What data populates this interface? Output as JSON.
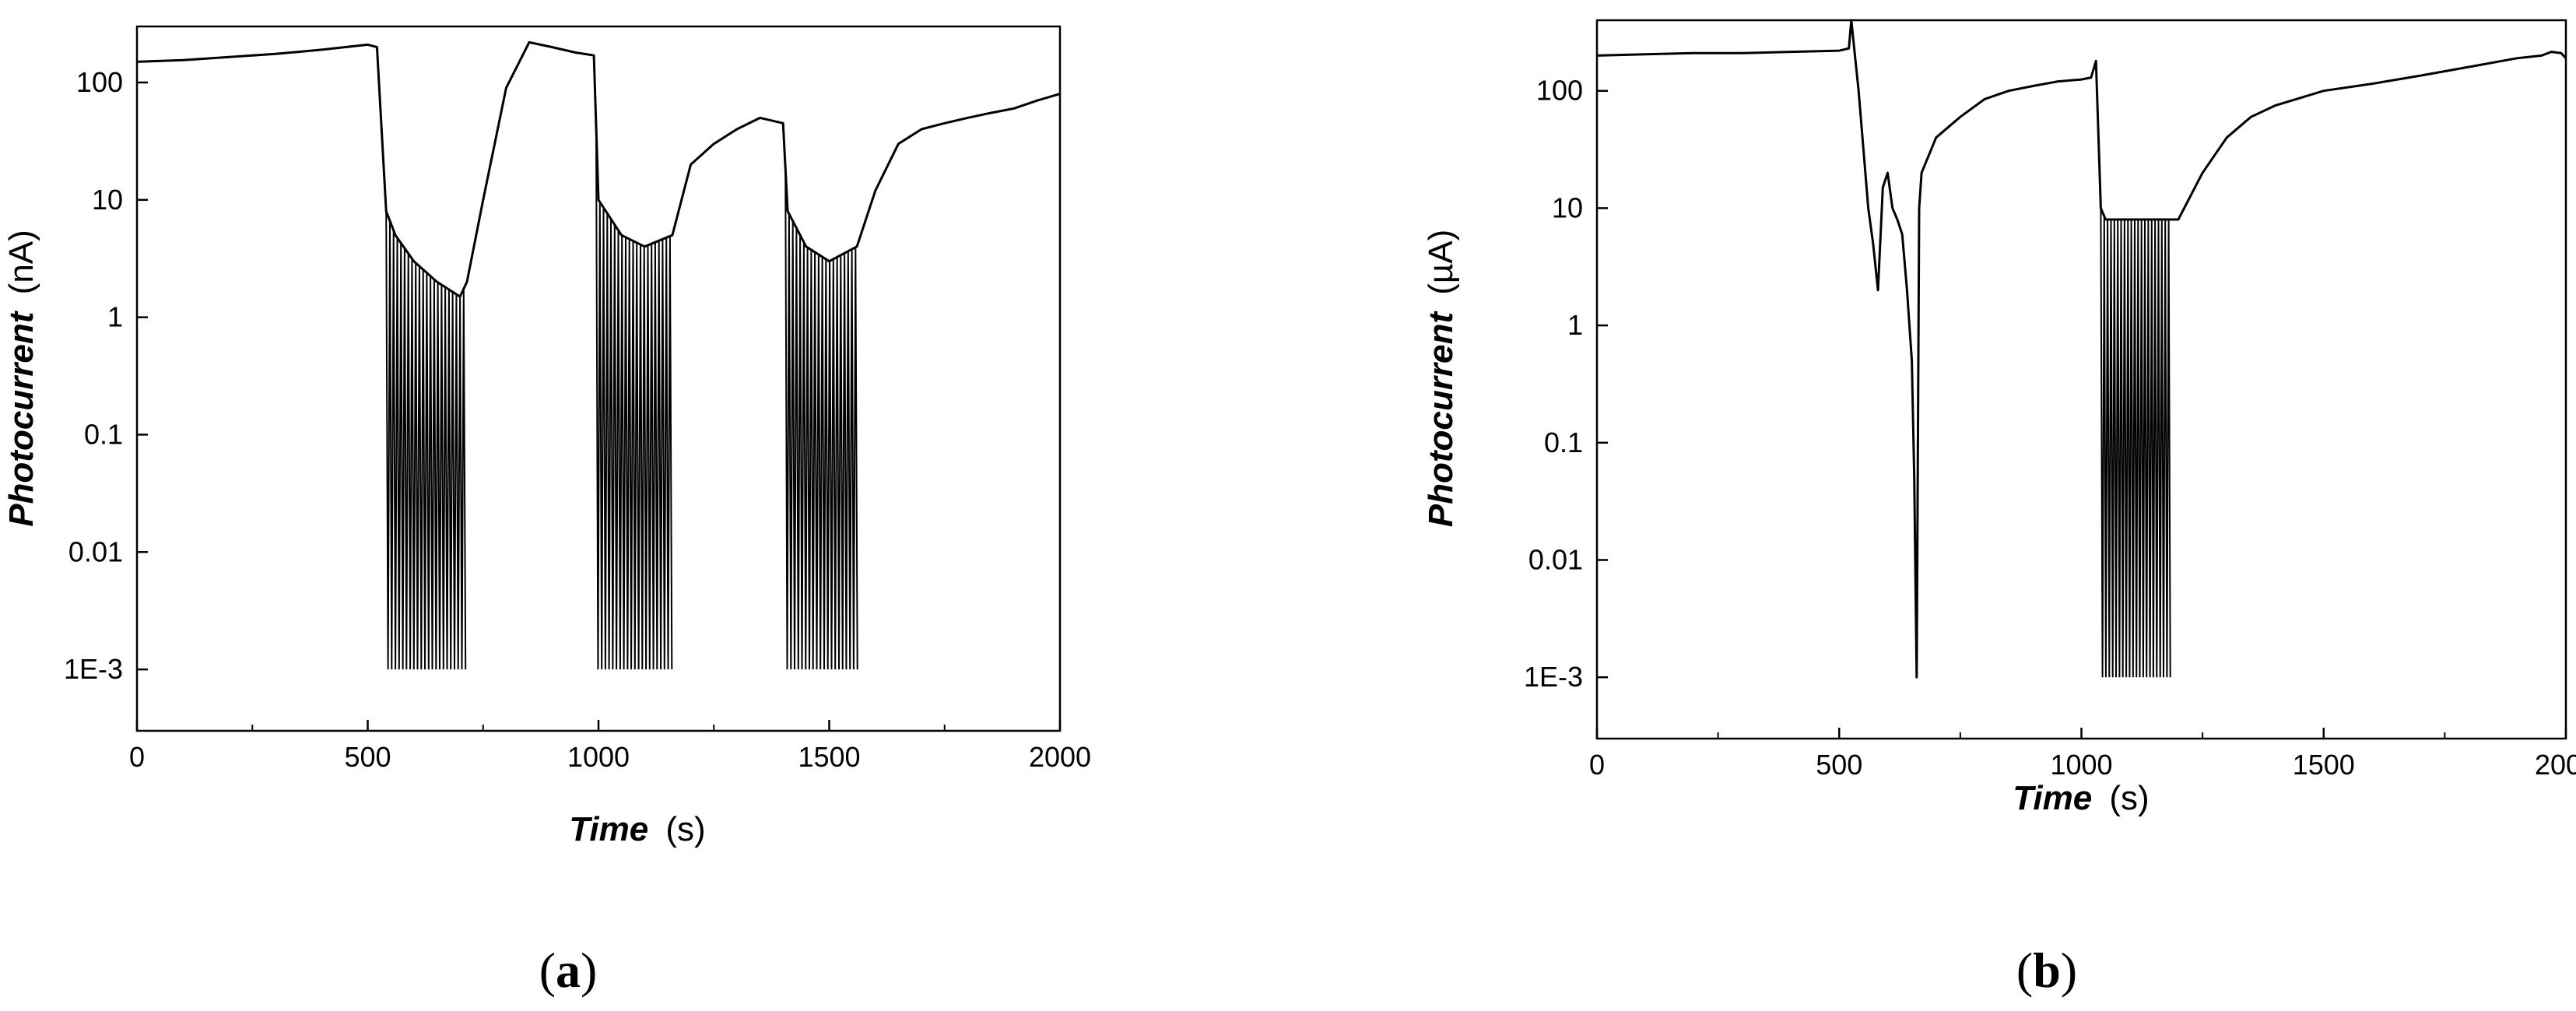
{
  "panels": [
    {
      "label_open": "(",
      "label_letter": "a",
      "label_close": ")"
    },
    {
      "label_open": "(",
      "label_letter": "b",
      "label_close": ")"
    }
  ],
  "chart_data": [
    {
      "type": "line",
      "xlabel_main": "Time",
      "xlabel_unit": "(s)",
      "ylabel_main": "Photocurrent",
      "ylabel_unit": "(nA)",
      "y_scale": "log",
      "xlim": [
        0,
        2000
      ],
      "ylim": [
        0.0003,
        300
      ],
      "x_ticks": [
        0,
        500,
        1000,
        1500,
        2000
      ],
      "x_tick_labels": [
        "0",
        "500",
        "1000",
        "1500",
        "2000"
      ],
      "y_ticks": [
        100,
        10,
        1,
        0.1,
        0.01,
        0.001
      ],
      "y_tick_labels": [
        "100",
        "10",
        "1",
        "0.1",
        "0.01",
        "1E-3"
      ],
      "grid": false,
      "series": [
        {
          "x": [
            0,
            100,
            200,
            300,
            400,
            500,
            520,
            540,
            560,
            600,
            650,
            700,
            715,
            750,
            800,
            850,
            900,
            950,
            990,
            1000,
            1050,
            1100,
            1160,
            1200,
            1250,
            1300,
            1350,
            1400,
            1410,
            1450,
            1500,
            1560,
            1600,
            1650,
            1700,
            1750,
            1800,
            1850,
            1900,
            1950,
            2000
          ],
          "y": [
            150,
            155,
            165,
            175,
            190,
            210,
            200,
            8,
            5,
            3,
            2,
            1.5,
            2,
            10,
            90,
            220,
            200,
            180,
            170,
            10,
            5,
            4,
            5,
            20,
            30,
            40,
            50,
            45,
            8,
            4,
            3,
            4,
            12,
            30,
            40,
            45,
            50,
            55,
            60,
            70,
            80
          ],
          "bursts": [
            {
              "x_start": 540,
              "x_end": 715,
              "x_step": 8,
              "y_low": 0.001
            },
            {
              "x_start": 995,
              "x_end": 1160,
              "x_step": 8,
              "y_low": 0.001
            },
            {
              "x_start": 1405,
              "x_end": 1560,
              "x_step": 8,
              "y_low": 0.001
            }
          ]
        }
      ]
    },
    {
      "type": "line",
      "xlabel_main": "Time",
      "xlabel_unit": "(s)",
      "ylabel_main": "Photocurrent",
      "ylabel_unit": "(µA)",
      "y_scale": "log",
      "xlim": [
        0,
        2000
      ],
      "ylim": [
        0.0003,
        400
      ],
      "x_ticks": [
        0,
        500,
        1000,
        1500,
        2000
      ],
      "x_tick_labels": [
        "0",
        "500",
        "1000",
        "1500",
        "2000"
      ],
      "y_ticks": [
        100,
        10,
        1,
        0.1,
        0.01,
        0.001
      ],
      "y_tick_labels": [
        "100",
        "10",
        "1",
        "0.1",
        "0.01",
        "1E-3"
      ],
      "grid": false,
      "series": [
        {
          "x": [
            0,
            100,
            200,
            300,
            400,
            500,
            520,
            525,
            540,
            560,
            570,
            580,
            590,
            600,
            610,
            620,
            630,
            640,
            650,
            655,
            660,
            665,
            670,
            700,
            750,
            800,
            850,
            900,
            950,
            1000,
            1020,
            1030,
            1040,
            1050,
            1100,
            1150,
            1180,
            1200,
            1250,
            1300,
            1350,
            1400,
            1500,
            1600,
            1700,
            1800,
            1900,
            1950,
            1970,
            1990,
            2000
          ],
          "y": [
            200,
            205,
            210,
            210,
            215,
            220,
            230,
            400,
            100,
            10,
            5,
            2,
            15,
            20,
            10,
            8,
            6,
            2,
            0.5,
            0.05,
            0.001,
            10,
            20,
            40,
            60,
            85,
            100,
            110,
            120,
            125,
            130,
            180,
            10,
            8,
            8,
            8,
            8,
            8,
            20,
            40,
            60,
            75,
            100,
            115,
            135,
            160,
            190,
            200,
            215,
            210,
            190
          ],
          "bursts": [
            {
              "x_start": 1040,
              "x_end": 1180,
              "x_step": 7,
              "y_low": 0.001
            }
          ]
        }
      ]
    }
  ]
}
